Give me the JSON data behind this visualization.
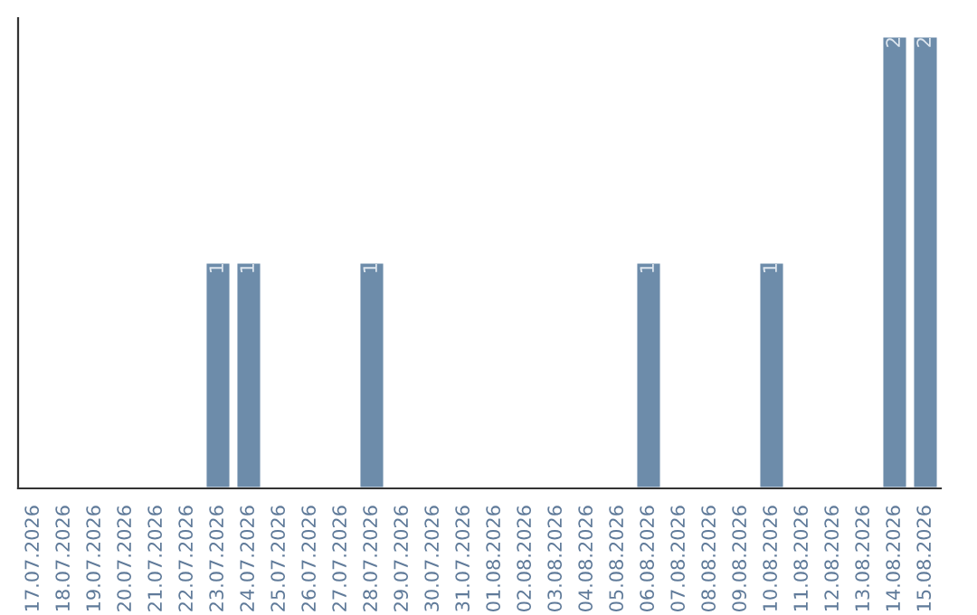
{
  "chart_data": {
    "type": "bar",
    "categories": [
      "17.07.2026",
      "18.07.2026",
      "19.07.2026",
      "20.07.2026",
      "21.07.2026",
      "22.07.2026",
      "23.07.2026",
      "24.07.2026",
      "25.07.2026",
      "26.07.2026",
      "27.07.2026",
      "28.07.2026",
      "29.07.2026",
      "30.07.2026",
      "31.07.2026",
      "01.08.2026",
      "02.08.2026",
      "03.08.2026",
      "04.08.2026",
      "05.08.2026",
      "06.08.2026",
      "07.08.2026",
      "08.08.2026",
      "09.08.2026",
      "10.08.2026",
      "11.08.2026",
      "12.08.2026",
      "13.08.2026",
      "14.08.2026",
      "15.08.2026"
    ],
    "values": [
      0,
      0,
      0,
      0,
      0,
      0,
      1,
      1,
      0,
      0,
      0,
      1,
      0,
      0,
      0,
      0,
      0,
      0,
      0,
      0,
      1,
      0,
      0,
      0,
      1,
      0,
      0,
      0,
      2,
      2
    ],
    "color": "#6d8caa",
    "ylim": [
      0,
      2.08
    ],
    "value_labels": [
      null,
      null,
      null,
      null,
      null,
      null,
      "1",
      "1",
      null,
      null,
      null,
      "1",
      null,
      null,
      null,
      null,
      null,
      null,
      null,
      null,
      "1",
      null,
      null,
      null,
      "1",
      null,
      null,
      null,
      "2",
      "2"
    ],
    "tick_labels": "x",
    "grid": false,
    "legend": false
  }
}
